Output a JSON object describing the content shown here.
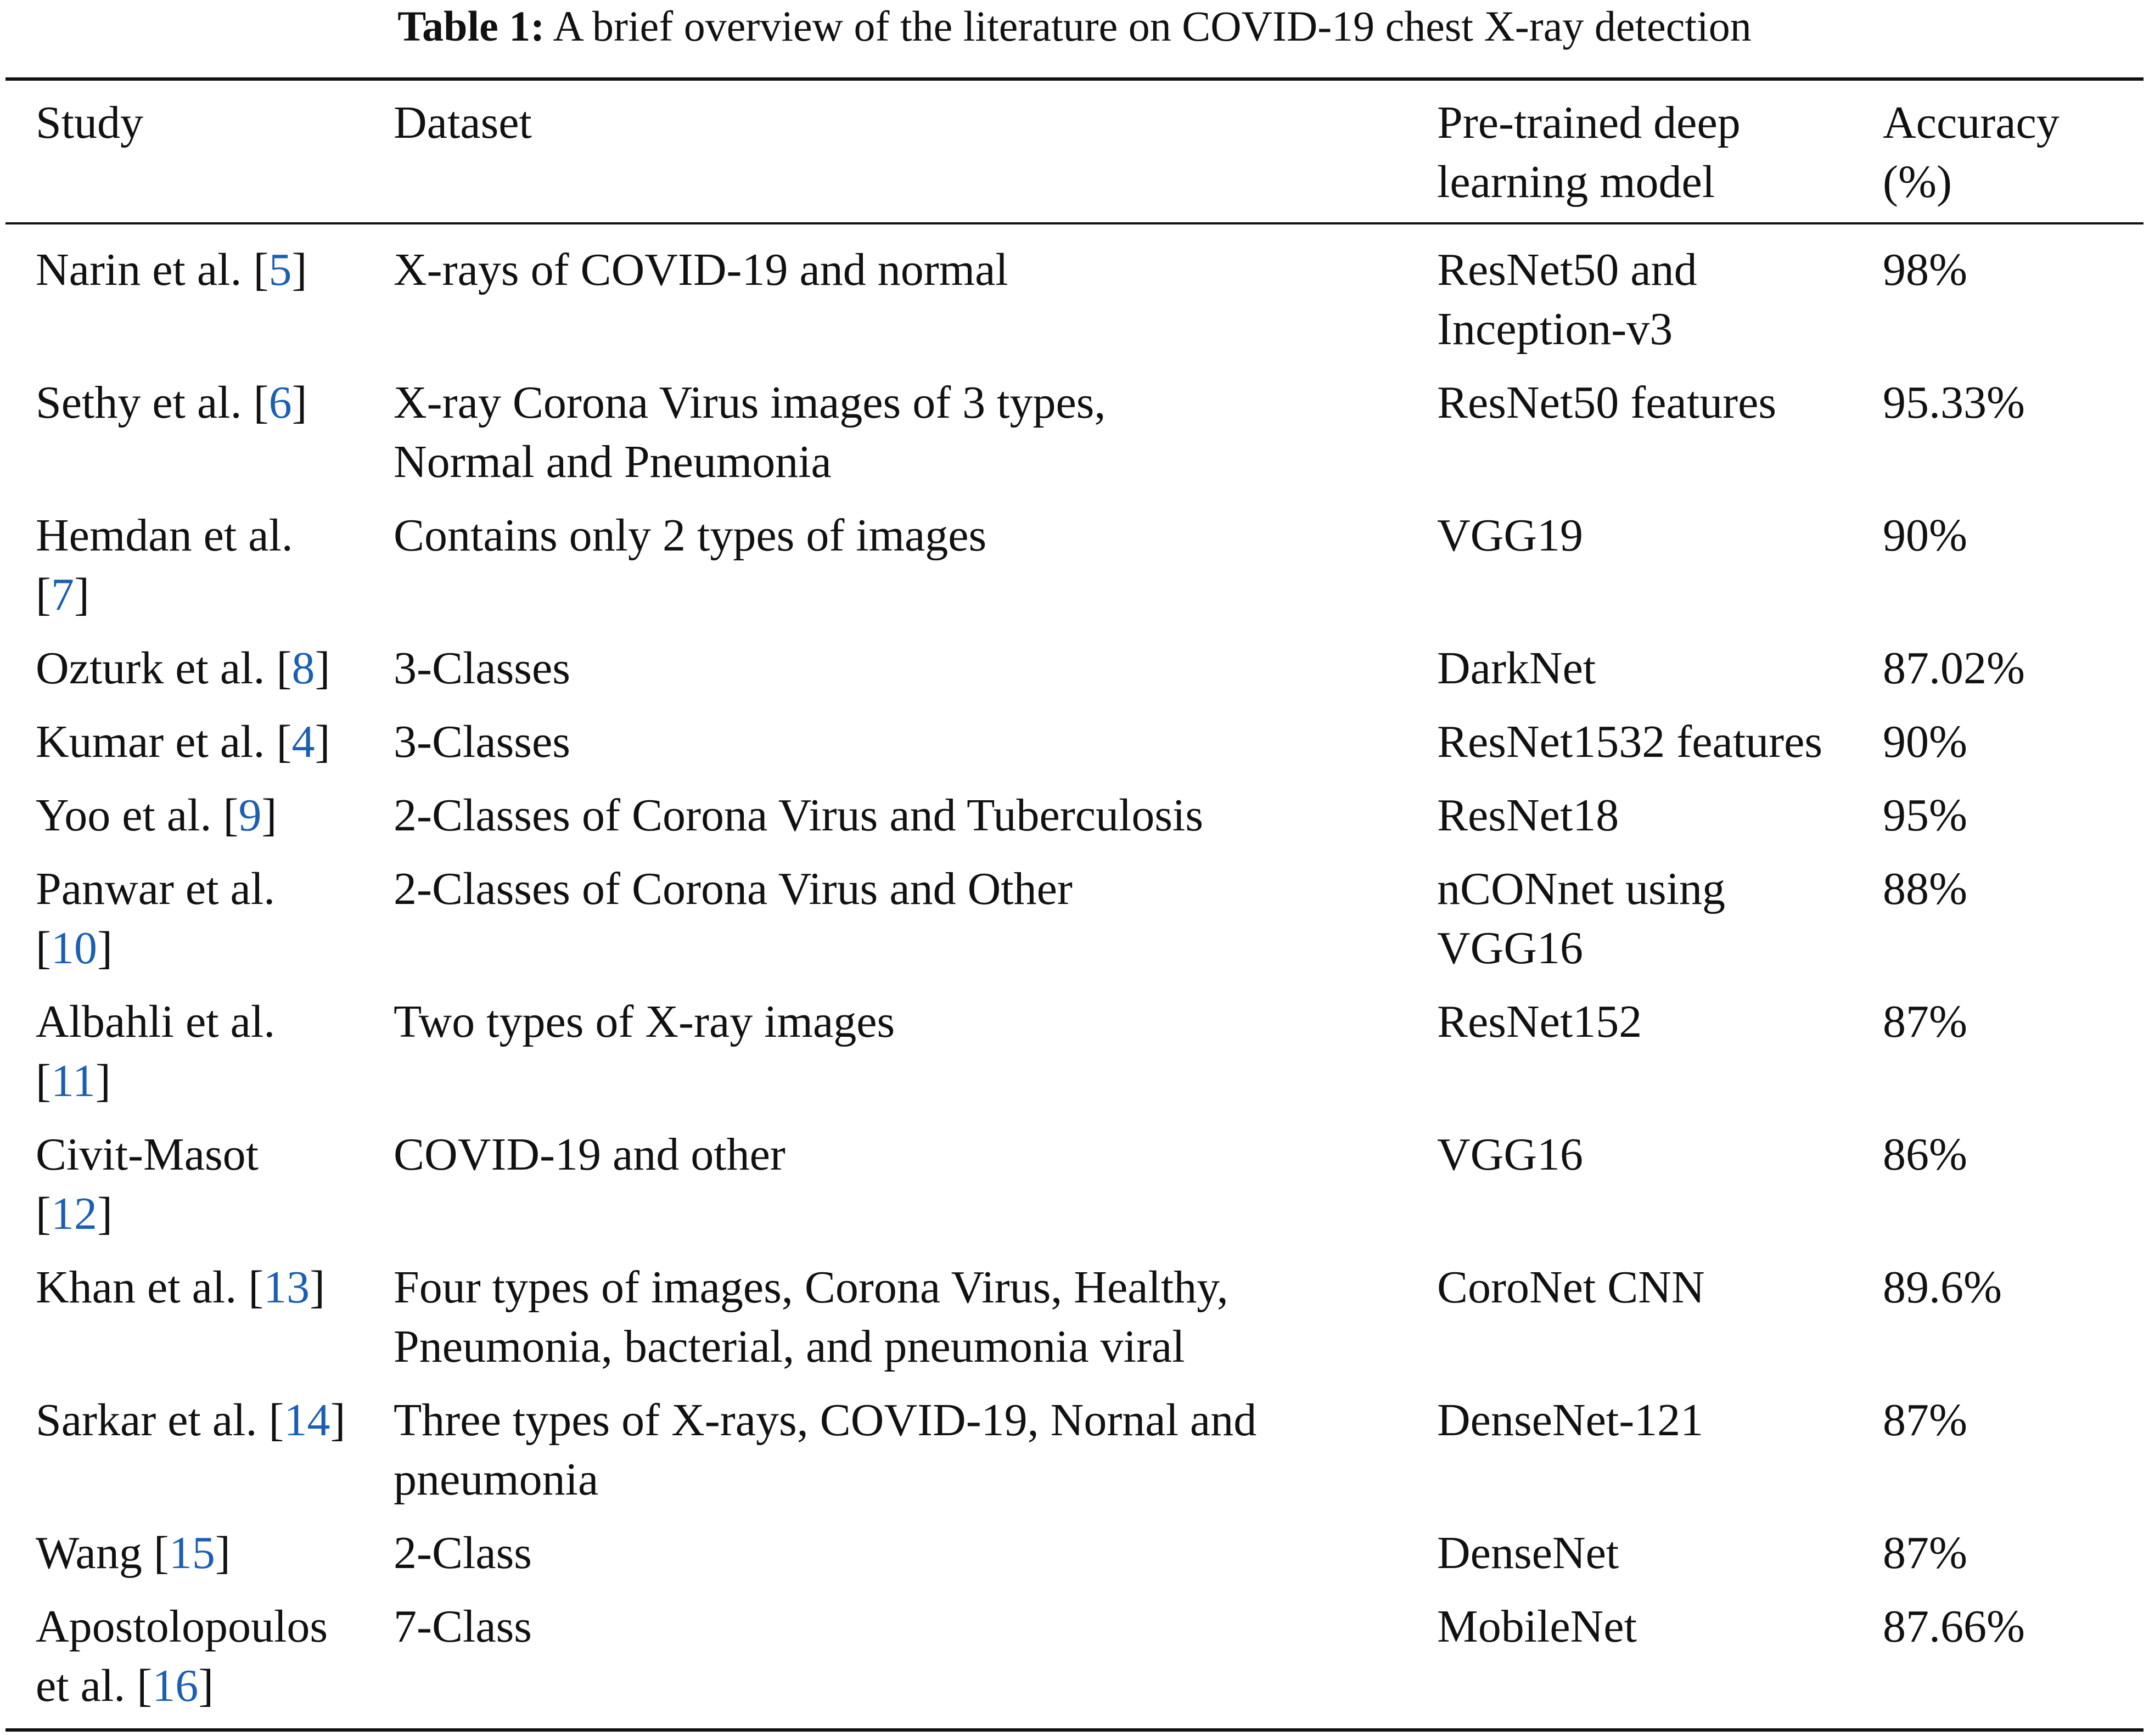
{
  "caption": {
    "label": "Table 1:",
    "text": "A brief overview of the literature on COVID-19 chest X-ray detection"
  },
  "table": {
    "headers": {
      "study": "Study",
      "dataset": "Dataset",
      "model_line1": "Pre-trained deep",
      "model_line2": "learning model",
      "accuracy_line1": "Accuracy",
      "accuracy_line2": "(%)"
    },
    "rows": [
      {
        "study": [
          "Narin et al. [",
          "5",
          "]"
        ],
        "dataset": [
          "X-rays of COVID-19 and normal"
        ],
        "model": [
          "ResNet50 and",
          "Inception-v3"
        ],
        "accuracy": "98%"
      },
      {
        "study": [
          "Sethy et al. [",
          "6",
          "]"
        ],
        "dataset": [
          "X-ray Corona Virus images of 3 types,",
          "Normal and Pneumonia"
        ],
        "model": [
          "ResNet50 features"
        ],
        "accuracy": "95.33%"
      },
      {
        "study": [
          "Hemdan et al.",
          "[",
          "7",
          "]"
        ],
        "dataset": [
          "Contains only 2 types of images"
        ],
        "model": [
          "VGG19"
        ],
        "accuracy": "90%"
      },
      {
        "study": [
          "Ozturk et al. [",
          "8",
          "]"
        ],
        "dataset": [
          "3-Classes"
        ],
        "model": [
          "DarkNet"
        ],
        "accuracy": "87.02%"
      },
      {
        "study": [
          "Kumar et al. [",
          "4",
          "]"
        ],
        "dataset": [
          "3-Classes"
        ],
        "model": [
          "ResNet1532 features"
        ],
        "accuracy": "90%"
      },
      {
        "study": [
          "Yoo et al. [",
          "9",
          "]"
        ],
        "dataset": [
          "2-Classes of Corona Virus and Tuberculosis"
        ],
        "model": [
          "ResNet18"
        ],
        "accuracy": "95%"
      },
      {
        "study": [
          "Panwar et al.",
          "[",
          "10",
          "]"
        ],
        "dataset": [
          "2-Classes of Corona Virus and Other"
        ],
        "model": [
          "nCONnet using",
          "VGG16"
        ],
        "accuracy": "88%"
      },
      {
        "study": [
          "Albahli et al.",
          "[",
          "11",
          "]"
        ],
        "dataset": [
          "Two types of X-ray images"
        ],
        "model": [
          "ResNet152"
        ],
        "accuracy": "87%"
      },
      {
        "study": [
          "Civit-Masot",
          "[",
          "12",
          "]"
        ],
        "dataset": [
          "COVID-19 and other"
        ],
        "model": [
          "VGG16"
        ],
        "accuracy": "86%"
      },
      {
        "study": [
          "Khan et al. [",
          "13",
          "]"
        ],
        "dataset": [
          "Four types of images, Corona Virus, Healthy,",
          "Pneumonia, bacterial, and pneumonia viral"
        ],
        "model": [
          "CoroNet CNN"
        ],
        "accuracy": "89.6%"
      },
      {
        "study": [
          "Sarkar et al. [",
          "14",
          "]"
        ],
        "dataset": [
          "Three types of X-rays, COVID-19, Nornal and",
          "pneumonia"
        ],
        "model": [
          "DenseNet-121"
        ],
        "accuracy": "87%"
      },
      {
        "study": [
          "Wang [",
          "15",
          "]"
        ],
        "dataset": [
          "2-Class"
        ],
        "model": [
          "DenseNet"
        ],
        "accuracy": "87%"
      },
      {
        "study": [
          "Apostolopoulos",
          "et al. [",
          "16",
          "]"
        ],
        "dataset": [
          "7-Class"
        ],
        "model": [
          "MobileNet"
        ],
        "accuracy": "87.66%"
      }
    ]
  },
  "colors": {
    "reference_link": "#1a5fb4",
    "text": "#111111",
    "rule": "#111111"
  }
}
